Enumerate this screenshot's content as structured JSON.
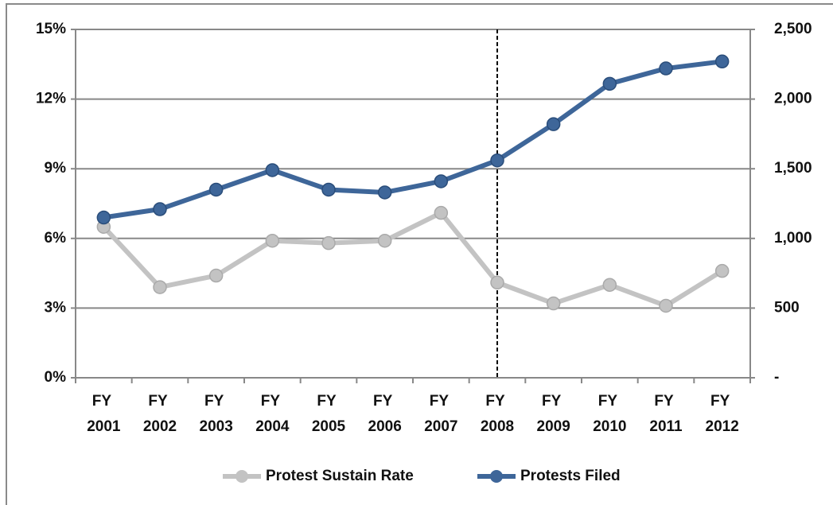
{
  "chart_data": {
    "type": "line",
    "categories": [
      "FY 2001",
      "FY 2002",
      "FY 2003",
      "FY 2004",
      "FY 2005",
      "FY 2006",
      "FY 2007",
      "FY 2008",
      "FY 2009",
      "FY 2010",
      "FY 2011",
      "FY 2012"
    ],
    "series": [
      {
        "name": "Protest Sustain Rate",
        "color": "#c3c3c3",
        "values": [
          6.5,
          3.9,
          4.4,
          5.9,
          5.8,
          5.9,
          7.1,
          4.1,
          3.2,
          4.0,
          3.1,
          4.6
        ]
      },
      {
        "name": "Protests Filed",
        "color": "#3e6699",
        "axis": "y2",
        "values": [
          1150,
          1210,
          1350,
          1490,
          1350,
          1330,
          1410,
          1560,
          1820,
          2110,
          2220,
          2270
        ]
      }
    ],
    "ylim": [
      0,
      15
    ],
    "yticks": [
      {
        "value": 0,
        "label": "0%"
      },
      {
        "value": 3,
        "label": "3%"
      },
      {
        "value": 6,
        "label": "6%"
      },
      {
        "value": 9,
        "label": "9%"
      },
      {
        "value": 12,
        "label": "12%"
      },
      {
        "value": 15,
        "label": "15%"
      }
    ],
    "y2lim": [
      0,
      2500
    ],
    "y2ticks": [
      {
        "value": 0,
        "label": "-"
      },
      500,
      {
        "value": 1000,
        "label": "1,000"
      },
      {
        "value": 1500,
        "label": "1,500"
      },
      {
        "value": 2000,
        "label": "2,000"
      },
      {
        "value": 2500,
        "label": "2,500"
      }
    ],
    "grid": true,
    "reference_line": "FY 2008",
    "legend": "bottom"
  }
}
